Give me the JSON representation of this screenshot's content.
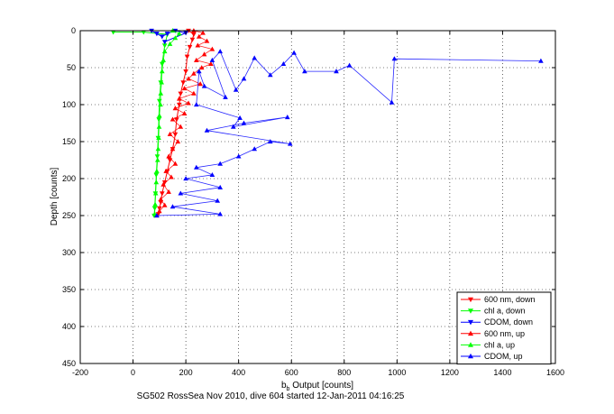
{
  "chart_data": {
    "type": "scatter",
    "title": "",
    "xlabel_main": "b",
    "xlabel_sub": "b",
    "xlabel_rest": " Output [counts]",
    "ylabel": "Depth [counts]",
    "caption": "SG502 RossSea Nov 2010, dive 604 started 12-Jan-2011 04:16:25",
    "xlim": [
      -200,
      1600
    ],
    "ylim": [
      0,
      450
    ],
    "y_reversed": true,
    "grid": true,
    "grid_style": "dotted",
    "legend_position": "bottom-right",
    "xticks": [
      "-200",
      "0",
      "200",
      "400",
      "600",
      "800",
      "1000",
      "1200",
      "1400",
      "1600"
    ],
    "yticks": [
      "0",
      "50",
      "100",
      "150",
      "200",
      "250",
      "300",
      "350",
      "400",
      "450"
    ],
    "colors": {
      "red": "#ff0000",
      "green": "#00ff00",
      "blue": "#0000ff"
    },
    "series": [
      {
        "name": "600 nm, down",
        "color": "#ff0000",
        "marker": "triangle-down",
        "connected": true,
        "points": [
          [
            210,
            0
          ],
          [
            230,
            5
          ],
          [
            225,
            12
          ],
          [
            215,
            22
          ],
          [
            205,
            35
          ],
          [
            200,
            55
          ],
          [
            190,
            70
          ],
          [
            180,
            85
          ],
          [
            175,
            100
          ],
          [
            165,
            120
          ],
          [
            160,
            140
          ],
          [
            150,
            160
          ],
          [
            140,
            175
          ],
          [
            130,
            190
          ],
          [
            120,
            205
          ],
          [
            110,
            220
          ],
          [
            105,
            232
          ],
          [
            100,
            240
          ],
          [
            95,
            248
          ]
        ]
      },
      {
        "name": "chl a, down",
        "color": "#00ff00",
        "marker": "triangle-down",
        "connected": true,
        "points": [
          [
            -75,
            2
          ],
          [
            40,
            2
          ],
          [
            130,
            5
          ],
          [
            120,
            20
          ],
          [
            110,
            45
          ],
          [
            105,
            70
          ],
          [
            100,
            95
          ],
          [
            98,
            120
          ],
          [
            95,
            145
          ],
          [
            92,
            170
          ],
          [
            88,
            195
          ],
          [
            85,
            220
          ],
          [
            82,
            240
          ],
          [
            80,
            250
          ]
        ]
      },
      {
        "name": "CDOM, down",
        "color": "#0000ff",
        "marker": "triangle-down",
        "connected": true,
        "points": [
          [
            70,
            0
          ],
          [
            90,
            4
          ],
          [
            110,
            8
          ],
          [
            130,
            4
          ],
          [
            160,
            0
          ],
          [
            200,
            3
          ],
          [
            120,
            15
          ]
        ]
      },
      {
        "name": "600 nm, up",
        "color": "#ff0000",
        "marker": "triangle-up",
        "connected": false,
        "points": [
          [
            230,
            0
          ],
          [
            265,
            3
          ],
          [
            250,
            8
          ],
          [
            280,
            14
          ],
          [
            245,
            20
          ],
          [
            300,
            25
          ],
          [
            270,
            32
          ],
          [
            240,
            40
          ],
          [
            295,
            45
          ],
          [
            260,
            50
          ],
          [
            230,
            58
          ],
          [
            210,
            65
          ],
          [
            255,
            72
          ],
          [
            195,
            78
          ],
          [
            230,
            85
          ],
          [
            175,
            92
          ],
          [
            210,
            98
          ],
          [
            160,
            105
          ],
          [
            195,
            112
          ],
          [
            150,
            120
          ],
          [
            180,
            130
          ],
          [
            140,
            140
          ],
          [
            170,
            150
          ],
          [
            150,
            160
          ],
          [
            135,
            170
          ],
          [
            160,
            180
          ],
          [
            125,
            190
          ],
          [
            145,
            198
          ],
          [
            115,
            208
          ],
          [
            135,
            218
          ],
          [
            105,
            228
          ],
          [
            120,
            236
          ],
          [
            100,
            244
          ],
          [
            90,
            250
          ]
        ]
      },
      {
        "name": "chl a, up",
        "color": "#00ff00",
        "marker": "triangle-up",
        "connected": false,
        "points": [
          [
            150,
            0
          ],
          [
            175,
            4
          ],
          [
            160,
            10
          ],
          [
            140,
            18
          ],
          [
            120,
            28
          ],
          [
            115,
            40
          ],
          [
            110,
            55
          ],
          [
            108,
            70
          ],
          [
            105,
            85
          ],
          [
            104,
            100
          ],
          [
            100,
            115
          ],
          [
            99,
            130
          ],
          [
            97,
            145
          ],
          [
            95,
            160
          ],
          [
            93,
            175
          ],
          [
            90,
            190
          ],
          [
            88,
            205
          ],
          [
            86,
            220
          ],
          [
            84,
            235
          ],
          [
            82,
            248
          ]
        ]
      },
      {
        "name": "CDOM, up",
        "color": "#0000ff",
        "marker": "triangle-up",
        "connected": false,
        "points": [
          [
            1545,
            41
          ],
          [
            990,
            38
          ],
          [
            980,
            97
          ],
          [
            820,
            47
          ],
          [
            770,
            55
          ],
          [
            650,
            55
          ],
          [
            610,
            30
          ],
          [
            570,
            45
          ],
          [
            520,
            60
          ],
          [
            460,
            37
          ],
          [
            420,
            65
          ],
          [
            390,
            80
          ],
          [
            330,
            28
          ],
          [
            300,
            40
          ],
          [
            350,
            90
          ],
          [
            270,
            75
          ],
          [
            250,
            55
          ],
          [
            240,
            100
          ],
          [
            405,
            118
          ],
          [
            380,
            130
          ],
          [
            585,
            117
          ],
          [
            420,
            125
          ],
          [
            280,
            135
          ],
          [
            595,
            153
          ],
          [
            520,
            150
          ],
          [
            460,
            160
          ],
          [
            400,
            170
          ],
          [
            330,
            180
          ],
          [
            240,
            185
          ],
          [
            300,
            195
          ],
          [
            200,
            200
          ],
          [
            330,
            212
          ],
          [
            180,
            220
          ],
          [
            320,
            230
          ],
          [
            150,
            238
          ],
          [
            330,
            248
          ],
          [
            90,
            250
          ]
        ]
      }
    ]
  }
}
